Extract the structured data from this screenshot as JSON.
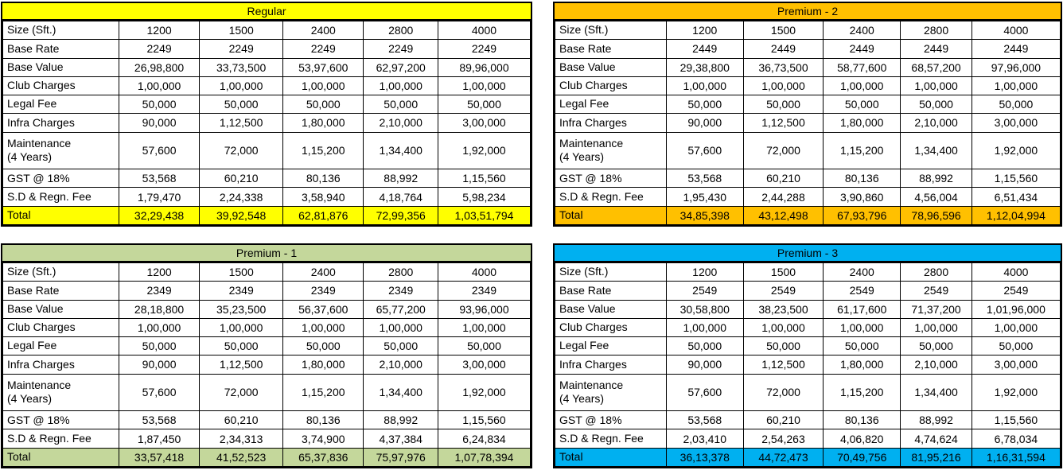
{
  "sheet": {
    "background_color": "#FFFFFF",
    "grid_line_color": "#000000",
    "text_color": "#000000"
  },
  "column_headers": [
    "1200",
    "1500",
    "2400",
    "2800",
    "4000"
  ],
  "tables": [
    {
      "title": "Regular",
      "accent_color": "#FFFF00",
      "rows": [
        {
          "label": "Size (Sft.)",
          "values": [
            "1200",
            "1500",
            "2400",
            "2800",
            "4000"
          ]
        },
        {
          "label": "Base Rate",
          "values": [
            "2249",
            "2249",
            "2249",
            "2249",
            "2249"
          ]
        },
        {
          "label": "Base Value",
          "values": [
            "26,98,800",
            "33,73,500",
            "53,97,600",
            "62,97,200",
            "89,96,000"
          ]
        },
        {
          "label": "Club Charges",
          "values": [
            "1,00,000",
            "1,00,000",
            "1,00,000",
            "1,00,000",
            "1,00,000"
          ]
        },
        {
          "label": "Legal Fee",
          "values": [
            "50,000",
            "50,000",
            "50,000",
            "50,000",
            "50,000"
          ]
        },
        {
          "label": "Infra Charges",
          "values": [
            "90,000",
            "1,12,500",
            "1,80,000",
            "2,10,000",
            "3,00,000"
          ]
        },
        {
          "label": "Maintenance\n(4 Years)",
          "tall": true,
          "values": [
            "57,600",
            "72,000",
            "1,15,200",
            "1,34,400",
            "1,92,000"
          ]
        },
        {
          "label": "GST @ 18%",
          "values": [
            "53,568",
            "60,210",
            "80,136",
            "88,992",
            "1,15,560"
          ]
        },
        {
          "label": "S.D & Regn. Fee",
          "values": [
            "1,79,470",
            "2,24,338",
            "3,58,940",
            "4,18,764",
            "5,98,234"
          ]
        },
        {
          "label": "Total",
          "total": true,
          "values": [
            "32,29,438",
            "39,92,548",
            "62,81,876",
            "72,99,356",
            "1,03,51,794"
          ]
        }
      ]
    },
    {
      "title": "Premium - 2",
      "accent_color": "#FFC000",
      "rows": [
        {
          "label": "Size (Sft.)",
          "values": [
            "1200",
            "1500",
            "2400",
            "2800",
            "4000"
          ]
        },
        {
          "label": "Base Rate",
          "values": [
            "2449",
            "2449",
            "2449",
            "2449",
            "2449"
          ]
        },
        {
          "label": "Base Value",
          "values": [
            "29,38,800",
            "36,73,500",
            "58,77,600",
            "68,57,200",
            "97,96,000"
          ]
        },
        {
          "label": "Club Charges",
          "values": [
            "1,00,000",
            "1,00,000",
            "1,00,000",
            "1,00,000",
            "1,00,000"
          ]
        },
        {
          "label": "Legal Fee",
          "values": [
            "50,000",
            "50,000",
            "50,000",
            "50,000",
            "50,000"
          ]
        },
        {
          "label": "Infra Charges",
          "values": [
            "90,000",
            "1,12,500",
            "1,80,000",
            "2,10,000",
            "3,00,000"
          ]
        },
        {
          "label": "Maintenance\n(4 Years)",
          "tall": true,
          "values": [
            "57,600",
            "72,000",
            "1,15,200",
            "1,34,400",
            "1,92,000"
          ]
        },
        {
          "label": "GST @ 18%",
          "values": [
            "53,568",
            "60,210",
            "80,136",
            "88,992",
            "1,15,560"
          ]
        },
        {
          "label": "S.D & Regn. Fee",
          "values": [
            "1,95,430",
            "2,44,288",
            "3,90,860",
            "4,56,004",
            "6,51,434"
          ]
        },
        {
          "label": "Total",
          "total": true,
          "values": [
            "34,85,398",
            "43,12,498",
            "67,93,796",
            "78,96,596",
            "1,12,04,994"
          ]
        }
      ]
    },
    {
      "title": "Premium - 1",
      "accent_color": "#C4D79B",
      "rows": [
        {
          "label": "Size (Sft.)",
          "values": [
            "1200",
            "1500",
            "2400",
            "2800",
            "4000"
          ]
        },
        {
          "label": "Base Rate",
          "values": [
            "2349",
            "2349",
            "2349",
            "2349",
            "2349"
          ]
        },
        {
          "label": "Base Value",
          "values": [
            "28,18,800",
            "35,23,500",
            "56,37,600",
            "65,77,200",
            "93,96,000"
          ]
        },
        {
          "label": "Club Charges",
          "values": [
            "1,00,000",
            "1,00,000",
            "1,00,000",
            "1,00,000",
            "1,00,000"
          ]
        },
        {
          "label": "Legal Fee",
          "values": [
            "50,000",
            "50,000",
            "50,000",
            "50,000",
            "50,000"
          ]
        },
        {
          "label": "Infra Charges",
          "values": [
            "90,000",
            "1,12,500",
            "1,80,000",
            "2,10,000",
            "3,00,000"
          ]
        },
        {
          "label": "Maintenance\n(4 Years)",
          "tall": true,
          "values": [
            "57,600",
            "72,000",
            "1,15,200",
            "1,34,400",
            "1,92,000"
          ]
        },
        {
          "label": "GST @ 18%",
          "values": [
            "53,568",
            "60,210",
            "80,136",
            "88,992",
            "1,15,560"
          ]
        },
        {
          "label": "S.D & Regn. Fee",
          "values": [
            "1,87,450",
            "2,34,313",
            "3,74,900",
            "4,37,384",
            "6,24,834"
          ]
        },
        {
          "label": "Total",
          "total": true,
          "values": [
            "33,57,418",
            "41,52,523",
            "65,37,836",
            "75,97,976",
            "1,07,78,394"
          ]
        }
      ]
    },
    {
      "title": "Premium - 3",
      "accent_color": "#00B0F0",
      "rows": [
        {
          "label": "Size (Sft.)",
          "values": [
            "1200",
            "1500",
            "2400",
            "2800",
            "4000"
          ]
        },
        {
          "label": "Base Rate",
          "values": [
            "2549",
            "2549",
            "2549",
            "2549",
            "2549"
          ]
        },
        {
          "label": "Base Value",
          "values": [
            "30,58,800",
            "38,23,500",
            "61,17,600",
            "71,37,200",
            "1,01,96,000"
          ]
        },
        {
          "label": "Club Charges",
          "values": [
            "1,00,000",
            "1,00,000",
            "1,00,000",
            "1,00,000",
            "1,00,000"
          ]
        },
        {
          "label": "Legal Fee",
          "values": [
            "50,000",
            "50,000",
            "50,000",
            "50,000",
            "50,000"
          ]
        },
        {
          "label": "Infra Charges",
          "values": [
            "90,000",
            "1,12,500",
            "1,80,000",
            "2,10,000",
            "3,00,000"
          ]
        },
        {
          "label": "Maintenance\n(4 Years)",
          "tall": true,
          "values": [
            "57,600",
            "72,000",
            "1,15,200",
            "1,34,400",
            "1,92,000"
          ]
        },
        {
          "label": "GST @ 18%",
          "values": [
            "53,568",
            "60,210",
            "80,136",
            "88,992",
            "1,15,560"
          ]
        },
        {
          "label": "S.D & Regn. Fee",
          "values": [
            "2,03,410",
            "2,54,263",
            "4,06,820",
            "4,74,624",
            "6,78,034"
          ]
        },
        {
          "label": "Total",
          "total": true,
          "values": [
            "36,13,378",
            "44,72,473",
            "70,49,756",
            "81,95,216",
            "1,16,31,594"
          ]
        }
      ]
    }
  ]
}
